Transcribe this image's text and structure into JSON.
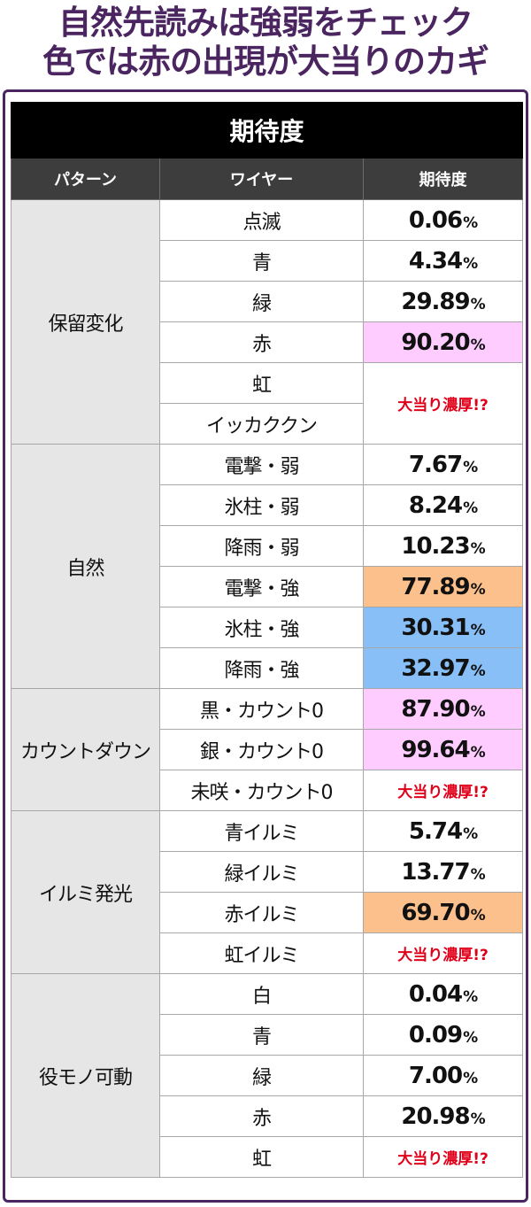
{
  "header": {
    "line1": "自然先読みは強弱をチェック",
    "line2": "色では赤の出現が大当りのカギ"
  },
  "table": {
    "title": "期待度",
    "columns": [
      "パターン",
      "ワイヤー",
      "期待度"
    ],
    "percent_sign": "%",
    "jackpot_text": "大当り濃厚!?",
    "highlight_colors": {
      "pink": "#ffccff",
      "orange": "#fcc08d",
      "blue": "#88bff7"
    },
    "groups": [
      {
        "category": "保留変化",
        "rows": [
          {
            "wire": "点滅",
            "value": "0.06"
          },
          {
            "wire": "青",
            "value": "4.34"
          },
          {
            "wire": "緑",
            "value": "29.89"
          },
          {
            "wire": "赤",
            "value": "90.20",
            "highlight": "pink"
          },
          {
            "wire": "虹",
            "value": "大当り濃厚!?",
            "jackpot": true,
            "rowspan": 2
          },
          {
            "wire": "イッカククン"
          }
        ]
      },
      {
        "category": "自然",
        "rows": [
          {
            "wire": "電撃・弱",
            "value": "7.67"
          },
          {
            "wire": "氷柱・弱",
            "value": "8.24"
          },
          {
            "wire": "降雨・弱",
            "value": "10.23"
          },
          {
            "wire": "電撃・強",
            "value": "77.89",
            "highlight": "orange"
          },
          {
            "wire": "氷柱・強",
            "value": "30.31",
            "highlight": "blue"
          },
          {
            "wire": "降雨・強",
            "value": "32.97",
            "highlight": "blue"
          }
        ]
      },
      {
        "category": "カウントダウン",
        "rows": [
          {
            "wire": "黒・カウント0",
            "value": "87.90",
            "highlight": "pink"
          },
          {
            "wire": "銀・カウント0",
            "value": "99.64",
            "highlight": "pink"
          },
          {
            "wire": "未咲・カウント0",
            "value": "大当り濃厚!?",
            "jackpot": true
          }
        ]
      },
      {
        "category": "イルミ発光",
        "rows": [
          {
            "wire": "青イルミ",
            "value": "5.74"
          },
          {
            "wire": "緑イルミ",
            "value": "13.77"
          },
          {
            "wire": "赤イルミ",
            "value": "69.70",
            "highlight": "orange"
          },
          {
            "wire": "虹イルミ",
            "value": "大当り濃厚!?",
            "jackpot": true
          }
        ]
      },
      {
        "category": "役モノ可動",
        "rows": [
          {
            "wire": "白",
            "value": "0.04"
          },
          {
            "wire": "青",
            "value": "0.09"
          },
          {
            "wire": "緑",
            "value": "7.00"
          },
          {
            "wire": "赤",
            "value": "20.98"
          },
          {
            "wire": "虹",
            "value": "大当り濃厚!?",
            "jackpot": true
          }
        ]
      }
    ]
  }
}
